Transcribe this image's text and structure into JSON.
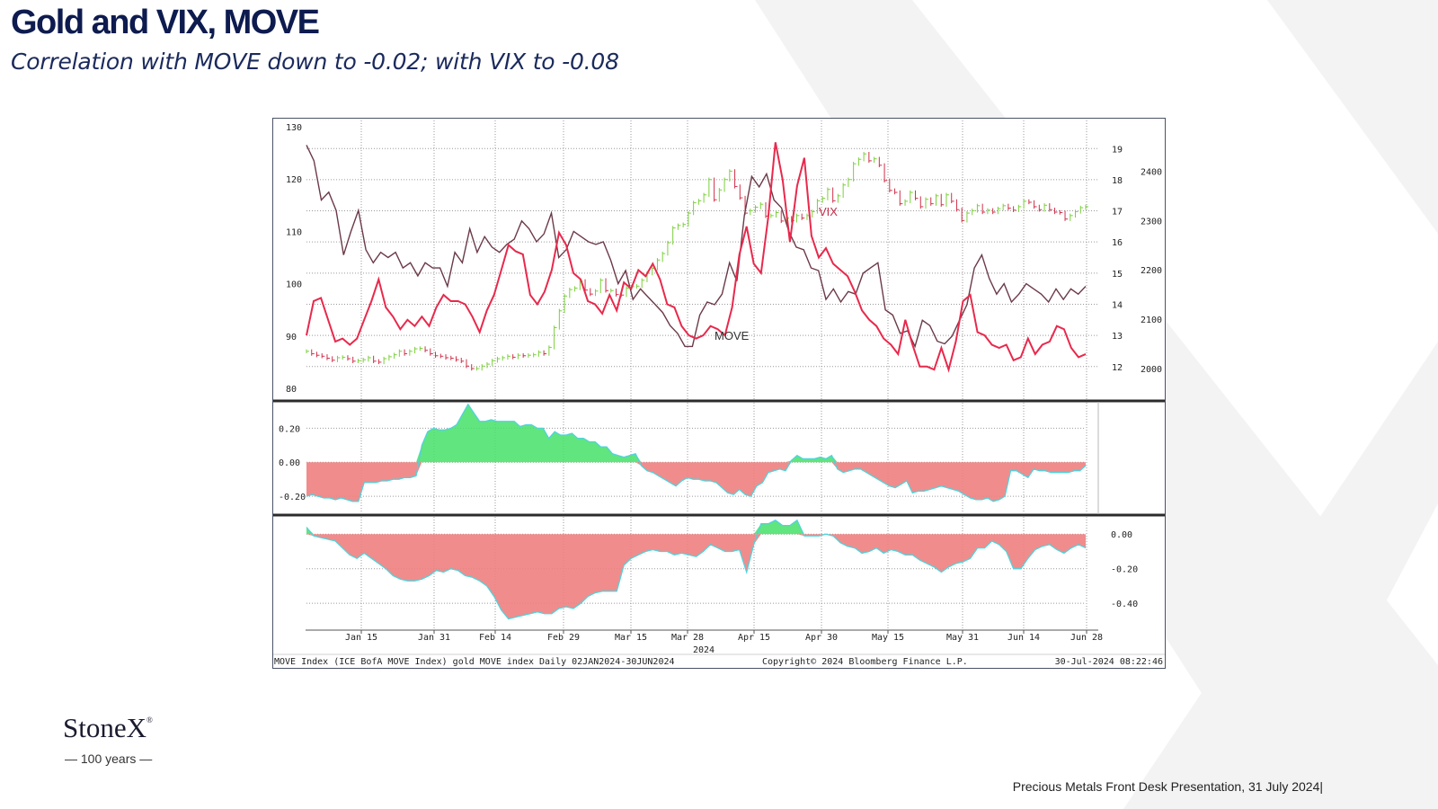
{
  "slide": {
    "title": "Gold and VIX, MOVE",
    "subtitle": "Correlation with MOVE down to -0.02; with VIX to -0.08",
    "logo_text": "StoneX",
    "logo_mark": "®",
    "logo_tagline": "— 100 years —",
    "footer": "Precious Metals Front Desk Presentation, 31 July 2024|"
  },
  "colors": {
    "move": "#6b3a48",
    "vix": "#e8294c",
    "gold_up": "#7ccf3c",
    "gold_down": "#d0304a",
    "corr_pos": "#45e067",
    "corr_neg": "#f07f7f",
    "corr_outline": "#4fd3dc",
    "title": "#0d1b4f"
  },
  "chart_data": {
    "type": "line",
    "footer_left": "MOVE Index (ICE BofA MOVE Index) gold MOVE index  Daily 02JAN2024-30JUN2024",
    "footer_center": "Copyright© 2024 Bloomberg Finance L.P.",
    "footer_right": "30-Jul-2024 08:22:46",
    "x_ticks": [
      "Jan 15",
      "Jan 31",
      "Feb 14",
      "Feb 29",
      "Mar 15",
      "Mar 28",
      "Apr 15",
      "Apr 30",
      "May 15",
      "May 31",
      "Jun 14",
      "Jun 28"
    ],
    "x_year_label": "2024",
    "panels": [
      {
        "name": "price",
        "y_left": {
          "ticks": [
            "130",
            "120",
            "110",
            "100",
            "90",
            "80"
          ],
          "range": [
            80,
            130
          ]
        },
        "y_vix": {
          "ticks": [
            "19",
            "18",
            "17",
            "16",
            "15",
            "14",
            "13",
            "12"
          ],
          "range": [
            11.3,
            19.7
          ]
        },
        "y_gold": {
          "ticks": [
            "2400",
            "2300",
            "2200",
            "2100",
            "2000"
          ],
          "range": [
            1960,
            2490
          ]
        },
        "labels": [
          "MOVE",
          "VIX"
        ],
        "series": [
          {
            "name": "MOVE",
            "axis": "left",
            "values": [
              126.5,
              123.5,
              116,
              117.5,
              114,
              105.5,
              110,
              114,
              106.5,
              104,
              106,
              105,
              106,
              103,
              104,
              101.5,
              104,
              103,
              103,
              99.5,
              106,
              104,
              110.5,
              106,
              109,
              107,
              106,
              107.5,
              108.5,
              112,
              110.5,
              108,
              109.5,
              113.5,
              105,
              106.5,
              110,
              109,
              108,
              107.5,
              108,
              104.5,
              100,
              102.5,
              97,
              99,
              97.5,
              96,
              94.5,
              92,
              90.5,
              88,
              88,
              94,
              96.5,
              96,
              98,
              104,
              100.5,
              113,
              120.5,
              118.5,
              121,
              116,
              114.5,
              110,
              107,
              106.5,
              103,
              102.5,
              97,
              99,
              96.5,
              98.5,
              98,
              102,
              103,
              104,
              95,
              94,
              90.5,
              91,
              88,
              93,
              92,
              89,
              88.5,
              90,
              93,
              96,
              103,
              105.5,
              101,
              98,
              100,
              96.5,
              98,
              100,
              99,
              98,
              96.5,
              99,
              97,
              99,
              98,
              99.5
            ]
          },
          {
            "name": "VIX",
            "axis": "vix",
            "values": [
              13.0,
              14.1,
              14.2,
              13.5,
              12.8,
              12.9,
              12.7,
              12.9,
              13.5,
              14.1,
              14.8,
              13.9,
              13.6,
              13.2,
              13.5,
              13.3,
              13.6,
              13.3,
              13.9,
              14.3,
              14.1,
              14.1,
              14.0,
              13.6,
              13.1,
              13.8,
              14.3,
              15.1,
              15.9,
              15.7,
              15.6,
              14.3,
              14.0,
              14.4,
              15.1,
              16.3,
              15.9,
              15.0,
              14.8,
              14.1,
              14.0,
              13.7,
              14.3,
              13.8,
              14.7,
              14.5,
              15.1,
              14.9,
              15.3,
              14.8,
              14.0,
              13.9,
              13.3,
              13.0,
              12.9,
              13.0,
              13.3,
              13.2,
              13.0,
              13.9,
              15.6,
              16.5,
              15.3,
              15.0,
              16.8,
              19.2,
              18.0,
              16.0,
              17.8,
              18.7,
              16.2,
              15.5,
              15.8,
              15.3,
              15.1,
              14.9,
              14.4,
              13.8,
              13.5,
              13.3,
              12.9,
              12.7,
              12.4,
              13.5,
              12.7,
              12.0,
              12.0,
              11.9,
              12.6,
              11.9,
              12.8,
              14.1,
              14.3,
              13.1,
              13.0,
              12.7,
              12.6,
              12.7,
              12.2,
              12.3,
              12.9,
              12.4,
              12.7,
              12.8,
              13.3,
              13.2,
              12.6,
              12.3,
              12.4
            ]
          },
          {
            "name": "Gold",
            "axis": "gold",
            "type": "bar",
            "values": [
              2035,
              2030,
              2027,
              2025,
              2021,
              2017,
              2022,
              2023,
              2020,
              2015,
              2016,
              2018,
              2022,
              2015,
              2013,
              2020,
              2024,
              2028,
              2035,
              2030,
              2035,
              2040,
              2041,
              2037,
              2030,
              2026,
              2025,
              2022,
              2021,
              2018,
              2015,
              2005,
              2000,
              2000,
              2005,
              2009,
              2016,
              2020,
              2022,
              2025,
              2023,
              2027,
              2026,
              2027,
              2028,
              2033,
              2030,
              2043,
              2083,
              2117,
              2147,
              2160,
              2163,
              2177,
              2159,
              2151,
              2157,
              2179,
              2158,
              2158,
              2150,
              2149,
              2163,
              2166,
              2167,
              2179,
              2193,
              2203,
              2220,
              2233,
              2255,
              2285,
              2290,
              2292,
              2315,
              2336,
              2340,
              2352,
              2383,
              2342,
              2362,
              2383,
              2400,
              2369,
              2346,
              2315,
              2320,
              2327,
              2333,
              2309,
              2310,
              2316,
              2299,
              2305,
              2300,
              2310,
              2305,
              2310,
              2318,
              2340,
              2345,
              2363,
              2340,
              2350,
              2372,
              2383,
              2415,
              2424,
              2435,
              2421,
              2425,
              2412,
              2381,
              2361,
              2357,
              2334,
              2339,
              2357,
              2345,
              2328,
              2343,
              2334,
              2350,
              2332,
              2352,
              2339,
              2322,
              2300,
              2315,
              2320,
              2330,
              2317,
              2321,
              2317,
              2324,
              2330,
              2325,
              2321,
              2328,
              2339,
              2337,
              2328,
              2322,
              2331,
              2322,
              2317,
              2316,
              2303,
              2310,
              2318,
              2326,
              2328
            ]
          }
        ]
      },
      {
        "name": "correlation_move",
        "y_left": {
          "ticks": [
            "0.20",
            "0.00",
            "-0.20"
          ],
          "range": [
            -0.3,
            0.35
          ]
        },
        "series": [
          {
            "name": "Correlation MOVE",
            "type": "area",
            "values": [
              -0.2,
              -0.19,
              -0.2,
              -0.21,
              -0.21,
              -0.22,
              -0.21,
              -0.22,
              -0.23,
              -0.23,
              -0.12,
              -0.12,
              -0.12,
              -0.11,
              -0.11,
              -0.1,
              -0.1,
              -0.09,
              -0.09,
              -0.08,
              0.1,
              0.18,
              0.2,
              0.19,
              0.19,
              0.2,
              0.22,
              0.28,
              0.34,
              0.29,
              0.24,
              0.24,
              0.25,
              0.24,
              0.24,
              0.24,
              0.24,
              0.21,
              0.22,
              0.22,
              0.2,
              0.2,
              0.14,
              0.18,
              0.16,
              0.16,
              0.17,
              0.14,
              0.14,
              0.12,
              0.12,
              0.09,
              0.09,
              0.05,
              0.04,
              0.03,
              0.04,
              0.05,
              -0.02,
              -0.05,
              -0.06,
              -0.08,
              -0.1,
              -0.12,
              -0.14,
              -0.11,
              -0.09,
              -0.1,
              -0.1,
              -0.11,
              -0.11,
              -0.12,
              -0.15,
              -0.18,
              -0.19,
              -0.16,
              -0.19,
              -0.2,
              -0.14,
              -0.12,
              -0.06,
              -0.05,
              -0.04,
              -0.05,
              0.01,
              0.04,
              0.02,
              0.02,
              0.02,
              0.03,
              0.02,
              0.04,
              -0.04,
              -0.06,
              -0.05,
              -0.04,
              -0.04,
              -0.06,
              -0.08,
              -0.1,
              -0.12,
              -0.14,
              -0.15,
              -0.13,
              -0.11,
              -0.18,
              -0.17,
              -0.17,
              -0.16,
              -0.15,
              -0.14,
              -0.15,
              -0.16,
              -0.17,
              -0.19,
              -0.21,
              -0.22,
              -0.22,
              -0.21,
              -0.23,
              -0.22,
              -0.2,
              -0.05,
              -0.05,
              -0.07,
              -0.09,
              -0.04,
              -0.05,
              -0.05,
              -0.06,
              -0.06,
              -0.06,
              -0.06,
              -0.05,
              -0.05,
              -0.02
            ]
          }
        ]
      },
      {
        "name": "correlation_vix",
        "y_right": {
          "ticks": [
            "0.00",
            "-0.20",
            "-0.40"
          ],
          "range": [
            -0.55,
            0.1
          ]
        },
        "series": [
          {
            "name": "Correlation VIX",
            "type": "area",
            "values": [
              0.04,
              -0.01,
              -0.02,
              -0.03,
              -0.04,
              -0.08,
              -0.12,
              -0.14,
              -0.11,
              -0.14,
              -0.17,
              -0.2,
              -0.24,
              -0.26,
              -0.27,
              -0.27,
              -0.26,
              -0.24,
              -0.21,
              -0.22,
              -0.2,
              -0.21,
              -0.24,
              -0.25,
              -0.27,
              -0.3,
              -0.36,
              -0.44,
              -0.49,
              -0.48,
              -0.47,
              -0.46,
              -0.45,
              -0.46,
              -0.46,
              -0.43,
              -0.42,
              -0.43,
              -0.4,
              -0.36,
              -0.34,
              -0.33,
              -0.33,
              -0.33,
              -0.18,
              -0.14,
              -0.12,
              -0.1,
              -0.09,
              -0.1,
              -0.1,
              -0.12,
              -0.11,
              -0.12,
              -0.13,
              -0.1,
              -0.06,
              -0.08,
              -0.1,
              -0.1,
              -0.09,
              -0.22,
              -0.06,
              0.06,
              0.06,
              0.08,
              0.05,
              0.05,
              0.08,
              -0.01,
              -0.01,
              -0.01,
              -0.0,
              -0.01,
              -0.05,
              -0.07,
              -0.08,
              -0.11,
              -0.1,
              -0.08,
              -0.11,
              -0.09,
              -0.1,
              -0.12,
              -0.12,
              -0.15,
              -0.17,
              -0.19,
              -0.22,
              -0.19,
              -0.17,
              -0.16,
              -0.14,
              -0.08,
              -0.08,
              -0.04,
              -0.06,
              -0.1,
              -0.2,
              -0.2,
              -0.14,
              -0.09,
              -0.07,
              -0.06,
              -0.09,
              -0.11,
              -0.08,
              -0.06,
              -0.08
            ]
          }
        ]
      }
    ]
  }
}
